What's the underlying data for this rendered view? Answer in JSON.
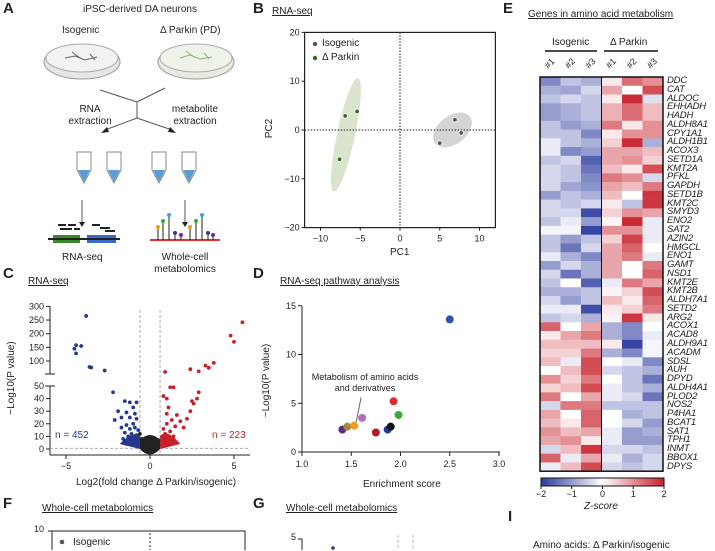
{
  "panels": {
    "a": "A",
    "b": "B",
    "c": "C",
    "d": "D",
    "e": "E",
    "f": "F",
    "g": "G",
    "i": "I"
  },
  "panel_a": {
    "title": "iPSC-derived DA neurons",
    "left_group": "Isogenic",
    "right_group": "Δ Parkin (PD)",
    "left_step": "RNA extraction",
    "right_step": "metabolite extraction",
    "left_output": "RNA-seq",
    "right_output": "Whole-cell metabolomics"
  },
  "panel_f": {
    "title": "Whole-cell metabolomics",
    "ytick_top": "10",
    "legend_isogenic": "Isogenic"
  },
  "panel_g": {
    "title": "Whole-cell metabolomics",
    "ytick_top": "5"
  },
  "panel_i": {
    "title": "Amino acids: Δ Parkin/isogenic"
  },
  "colors": {
    "isogenic": "#555555",
    "parkin": "#2e6b1e",
    "down": "#253a8e",
    "up": "#c8202a",
    "ns": "#222222"
  },
  "chart_data": [
    {
      "id": "B",
      "type": "scatter",
      "title": "RNA-seq",
      "xlabel": "PC1",
      "ylabel": "PC2",
      "xlim": [
        -12,
        12
      ],
      "ylim": [
        -20,
        20
      ],
      "xticks": [
        -10,
        -5,
        0,
        5,
        10
      ],
      "yticks": [
        -20,
        -10,
        0,
        10,
        20
      ],
      "legend": "top-left",
      "series": [
        {
          "name": "Isogenic",
          "color": "#555555",
          "points": [
            [
              5.0,
              -2.7
            ],
            [
              6.9,
              2.1
            ],
            [
              7.7,
              -0.6
            ]
          ]
        },
        {
          "name": "Δ Parkin",
          "color": "#2e6b1e",
          "points": [
            [
              -7.6,
              -6.0
            ],
            [
              -6.9,
              2.9
            ],
            [
              -5.4,
              3.8
            ]
          ]
        }
      ]
    },
    {
      "id": "C",
      "type": "scatter",
      "title": "RNA-seq",
      "xlabel": "Log2(fold change Δ Parkin/isogenic)",
      "ylabel": "−Log10(P value)",
      "xlim": [
        -6,
        6
      ],
      "xticks": [
        -5,
        0,
        5
      ],
      "yticks_lower": [
        0,
        10,
        20,
        30,
        40,
        50
      ],
      "yticks_upper": [
        100,
        150,
        200,
        250,
        300
      ],
      "annotation_down": "n = 452",
      "annotation_up": "n = 223",
      "down": [
        [
          -3.8,
          265
        ],
        [
          -4.4,
          158
        ],
        [
          -4.1,
          155
        ],
        [
          -4.5,
          145
        ],
        [
          -4.4,
          128
        ],
        [
          -3.6,
          78
        ],
        [
          -3.5,
          76
        ],
        [
          -2.7,
          65
        ],
        [
          -2.2,
          45
        ],
        [
          -1.5,
          38
        ],
        [
          -1.2,
          37
        ],
        [
          -0.8,
          37
        ],
        [
          -1.0,
          33
        ],
        [
          -1.9,
          30
        ],
        [
          -1.4,
          29
        ],
        [
          -0.9,
          28
        ],
        [
          -1.7,
          25
        ],
        [
          -1.2,
          25
        ],
        [
          -0.8,
          24
        ],
        [
          -2.1,
          23
        ],
        [
          -1.0,
          20
        ],
        [
          -1.4,
          19
        ],
        [
          -1.7,
          17
        ],
        [
          -0.9,
          17
        ],
        [
          -1.2,
          16
        ],
        [
          -0.7,
          15
        ],
        [
          -1.5,
          13
        ],
        [
          -1.1,
          12
        ],
        [
          -0.8,
          11
        ],
        [
          -1.3,
          10
        ],
        [
          -0.9,
          9
        ],
        [
          -1.6,
          8
        ],
        [
          -1.2,
          7
        ],
        [
          -0.8,
          6
        ],
        [
          -1.0,
          5
        ],
        [
          -0.7,
          4
        ],
        [
          -1.4,
          4
        ],
        [
          -0.9,
          3
        ]
      ],
      "up": [
        [
          5.5,
          242
        ],
        [
          4.8,
          193
        ],
        [
          5.0,
          170
        ],
        [
          3.8,
          93
        ],
        [
          3.3,
          83
        ],
        [
          3.5,
          75
        ],
        [
          2.4,
          70
        ],
        [
          2.9,
          62
        ],
        [
          0.9,
          60
        ],
        [
          1.2,
          49
        ],
        [
          1.4,
          49
        ],
        [
          2.9,
          45
        ],
        [
          0.8,
          42
        ],
        [
          2.8,
          40
        ],
        [
          1.0,
          40
        ],
        [
          2.5,
          38
        ],
        [
          2.6,
          36
        ],
        [
          1.1,
          33
        ],
        [
          2.4,
          30
        ],
        [
          1.0,
          28
        ],
        [
          1.6,
          27
        ],
        [
          2.2,
          24
        ],
        [
          1.3,
          23
        ],
        [
          1.8,
          22
        ],
        [
          1.0,
          20
        ],
        [
          1.5,
          18
        ],
        [
          2.0,
          17
        ],
        [
          0.8,
          16
        ],
        [
          1.2,
          14
        ],
        [
          0.9,
          12
        ],
        [
          1.4,
          10
        ],
        [
          1.1,
          8
        ],
        [
          0.8,
          6
        ],
        [
          1.3,
          5
        ],
        [
          1.0,
          4
        ],
        [
          0.7,
          3
        ]
      ],
      "ns": [
        [
          -0.5,
          8
        ],
        [
          -0.3,
          5
        ],
        [
          -0.2,
          3
        ],
        [
          0,
          1
        ],
        [
          0.2,
          2
        ],
        [
          0.4,
          4
        ],
        [
          0.5,
          7
        ],
        [
          -0.6,
          12
        ],
        [
          0.3,
          6
        ],
        [
          -0.4,
          2
        ],
        [
          0.1,
          0.5
        ],
        [
          0.5,
          3
        ]
      ]
    },
    {
      "id": "D",
      "type": "scatter",
      "title": "RNA-seq pathway analysis",
      "xlabel": "Enrichment score",
      "ylabel": "−Log10(P value)",
      "xlim": [
        1.0,
        3.0
      ],
      "ylim": [
        0,
        15
      ],
      "xticks": [
        "1.0",
        "1.5",
        "2.0",
        "2.5",
        "3.0"
      ],
      "yticks": [
        0,
        5,
        10,
        15
      ],
      "annotation": "Metabolism of amino acids and derivatives",
      "points": [
        {
          "x": 1.41,
          "y": 2.3,
          "color": "#5a2a80"
        },
        {
          "x": 1.46,
          "y": 2.6,
          "color": "#9a8a3a"
        },
        {
          "x": 1.53,
          "y": 2.7,
          "color": "#f39a1e",
          "label": "Metabolism of amino acids and derivatives"
        },
        {
          "x": 1.61,
          "y": 3.5,
          "color": "#b070c0"
        },
        {
          "x": 1.75,
          "y": 2.0,
          "color": "#b01c24"
        },
        {
          "x": 1.87,
          "y": 2.3,
          "color": "#1f3a9e"
        },
        {
          "x": 1.9,
          "y": 2.6,
          "color": "#111111"
        },
        {
          "x": 1.93,
          "y": 5.2,
          "color": "#e02a2a"
        },
        {
          "x": 1.98,
          "y": 3.8,
          "color": "#3aaa3a"
        },
        {
          "x": 2.5,
          "y": 13.6,
          "color": "#3050b0"
        }
      ]
    },
    {
      "id": "E",
      "type": "heatmap",
      "title": "Genes in amino acid metabolism",
      "groups": [
        "Isogenic",
        "Δ Parkin"
      ],
      "columns": [
        "#1",
        "#2",
        "#3",
        "#1",
        "#2",
        "#3"
      ],
      "colorbar_label": "Z-score",
      "colorbar_ticks": [
        "−2",
        "−1",
        "0",
        "1",
        "2"
      ],
      "zlim": [
        -2,
        2
      ],
      "rows": [
        "DDC",
        "CAT",
        "ALDOC",
        "EHHADH",
        "HADH",
        "ALDH8A1",
        "CPY1A1",
        "ALDH1B1",
        "ACOX3",
        "SETD1A",
        "KMT2A",
        "PFKL",
        "GAPDH",
        "SETD1B",
        "KMT2C",
        "SMYD3",
        "ENO2",
        "SAT2",
        "AZIN2",
        "HMGCL",
        "ENO1",
        "GAMT",
        "NSD1",
        "KMT2E",
        "KMT2B",
        "ALDH7A1",
        "SETD2",
        "ARG2",
        "ACOX1",
        "ACAD8",
        "ALDH9A1",
        "ACADM",
        "SDSL",
        "AUH",
        "DPYD",
        "ALDH4A1",
        "PLOD2",
        "NOS2",
        "P4HA1",
        "BCAT1",
        "SAT1",
        "TPH1",
        "INMT",
        "BBOX1",
        "DPYS"
      ],
      "values": [
        [
          -1.2,
          -0.6,
          -0.8,
          0.2,
          1.3,
          1.0
        ],
        [
          -0.8,
          -0.9,
          -0.4,
          0.8,
          0,
          1.6
        ],
        [
          -0.6,
          -0.4,
          -0.6,
          0.2,
          1.9,
          -0.3
        ],
        [
          -1.0,
          -0.8,
          -0.6,
          0.7,
          1.3,
          0.6
        ],
        [
          -1.0,
          -0.8,
          -0.6,
          0.7,
          1.3,
          0.6
        ],
        [
          -0.6,
          -1.0,
          -0.8,
          1.2,
          0.2,
          1.0
        ],
        [
          -0.6,
          -0.6,
          -1.2,
          0.2,
          1.0,
          1.0
        ],
        [
          -0.2,
          -0.6,
          -0.8,
          0.4,
          1.9,
          -0.8
        ],
        [
          -0.2,
          -1.2,
          -1.0,
          0.8,
          0.8,
          0.6
        ],
        [
          -0.6,
          -0.4,
          -1.6,
          0.8,
          1.0,
          0.4
        ],
        [
          -0.4,
          -0.6,
          -1.4,
          0.6,
          0.2,
          1.6
        ],
        [
          -0.4,
          -0.6,
          -1.2,
          1.2,
          1.0,
          -0.4
        ],
        [
          -0.4,
          -0.9,
          -1.1,
          0.8,
          0.6,
          1.2
        ],
        [
          -1.0,
          -0.6,
          -0.8,
          0.6,
          0,
          1.8
        ],
        [
          -0.4,
          -0.6,
          -0.4,
          0.2,
          -0.6,
          1.8
        ],
        [
          -0.4,
          -0.4,
          -1.8,
          0.4,
          1.0,
          0.8
        ],
        [
          -0.6,
          -0.2,
          -1.0,
          0.1,
          1.9,
          -0.2
        ],
        [
          -0.1,
          -0.1,
          -1.9,
          1.0,
          1.0,
          -0.2
        ],
        [
          -0.6,
          -1.0,
          -0.6,
          0.4,
          1.7,
          -0.2
        ],
        [
          -0.6,
          -1.4,
          -0.4,
          0.8,
          1.4,
          0
        ],
        [
          -0.2,
          -0.8,
          -1.2,
          0.8,
          1.2,
          -0.2
        ],
        [
          -1.0,
          -0.4,
          -0.8,
          0.8,
          0,
          1.2
        ],
        [
          -0.4,
          -1.4,
          -0.8,
          0.8,
          0,
          1.4
        ],
        [
          -0.6,
          0,
          -1.6,
          -0.2,
          1.2,
          0.8
        ],
        [
          -0.8,
          -0.8,
          -0.6,
          0.1,
          0.4,
          1.6
        ],
        [
          -0.4,
          -1.0,
          -0.6,
          0.6,
          0.2,
          1.4
        ],
        [
          -0.2,
          -0.2,
          -1.8,
          0.2,
          0.4,
          1.2
        ],
        [
          -0.6,
          -0.4,
          -0.8,
          0.1,
          1.8,
          0.2
        ],
        [
          1.4,
          0,
          0.8,
          -0.8,
          -1.2,
          0
        ],
        [
          0.2,
          0.8,
          1.2,
          -0.8,
          -1.2,
          -0.2
        ],
        [
          0.6,
          0.6,
          0.6,
          0.2,
          -1.9,
          -0.1
        ],
        [
          0.4,
          0.4,
          1.2,
          -0.8,
          -1.2,
          -0.1
        ],
        [
          0.6,
          -0.2,
          1.6,
          0,
          -0.2,
          -1.2
        ],
        [
          0,
          0.6,
          1.6,
          -0.4,
          -0.6,
          -0.8
        ],
        [
          1.0,
          0.4,
          1.2,
          0,
          -0.6,
          -1.4
        ],
        [
          0.4,
          0.6,
          1.6,
          -0.2,
          -0.6,
          -0.8
        ],
        [
          1.2,
          0,
          0.8,
          -0.2,
          -0.4,
          -1.4
        ],
        [
          -0.4,
          1.2,
          1.2,
          -0.6,
          -0.6,
          -0.6
        ],
        [
          0.8,
          0,
          1.4,
          0,
          -0.8,
          -0.6
        ],
        [
          0.6,
          0.2,
          1.4,
          0,
          -0.4,
          -1.0
        ],
        [
          1.0,
          0.6,
          0.8,
          -0.2,
          -1.0,
          -0.8
        ],
        [
          0.8,
          1.0,
          0.2,
          -0.2,
          -1.0,
          -1.0
        ],
        [
          -0.4,
          0.6,
          1.8,
          -0.4,
          -0.4,
          -0.6
        ],
        [
          1.4,
          -0.2,
          0.8,
          -0.2,
          -0.8,
          -0.4
        ],
        [
          -0.2,
          0.6,
          1.6,
          -0.4,
          -0.6,
          -0.4
        ]
      ]
    }
  ]
}
